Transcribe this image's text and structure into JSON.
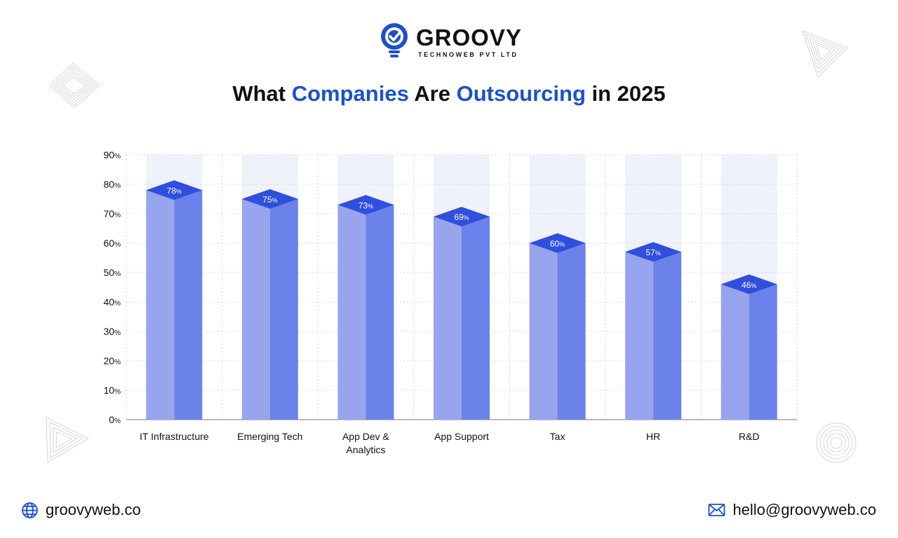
{
  "brand": {
    "name": "GROOVY",
    "subtitle": "TECHNOWEB PVT LTD"
  },
  "title": {
    "part1": "What ",
    "part2": "Companies",
    "part3": " Are ",
    "part4": "Outsourcing",
    "part5": " in 2025"
  },
  "colors": {
    "accent": "#1e50c8",
    "bar_left": "#97a5ee",
    "bar_right": "#6b82ea",
    "bar_top": "#2f4fdc",
    "band": "#eff1fb"
  },
  "chart_data": {
    "type": "bar",
    "title": "What Companies Are Outsourcing in 2025",
    "categories": [
      "IT Infrastructure",
      "Emerging Tech",
      "App Dev & Analytics",
      "App Support",
      "Tax",
      "HR",
      "R&D"
    ],
    "category_lines": [
      [
        "IT Infrastructure"
      ],
      [
        "Emerging Tech"
      ],
      [
        "App Dev &",
        "Analytics"
      ],
      [
        "App Support"
      ],
      [
        "Tax"
      ],
      [
        "HR"
      ],
      [
        "R&D"
      ]
    ],
    "values": [
      78,
      75,
      73,
      69,
      60,
      57,
      46
    ],
    "value_labels": [
      "78",
      "75",
      "73",
      "69",
      "60",
      "57",
      "46"
    ],
    "unit": "%",
    "y_ticks": [
      "0",
      "10",
      "20",
      "30",
      "40",
      "50",
      "60",
      "70",
      "80",
      "90"
    ],
    "ylim": [
      0,
      90
    ],
    "xlabel": "",
    "ylabel": "",
    "grid": true
  },
  "footer": {
    "website": "groovyweb.co",
    "email": "hello@groovyweb.co",
    "globe_icon": "globe-icon",
    "mail_icon": "mail-icon"
  }
}
